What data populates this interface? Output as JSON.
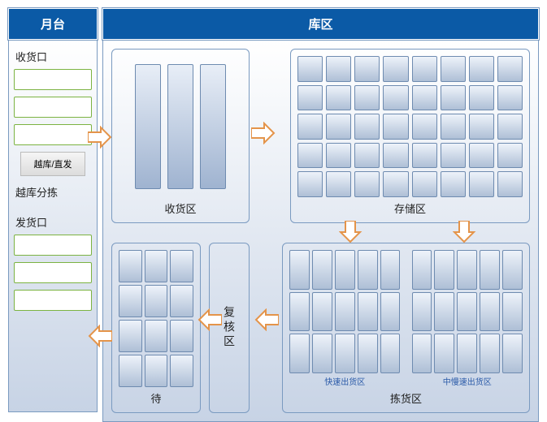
{
  "colors": {
    "header_bg": "#0b5aa6",
    "panel_gradient_top": "#ffffff",
    "panel_gradient_bottom": "#c7d3e5",
    "zone_border": "#7a9ac0",
    "cell_top": "#eef3fa",
    "cell_bottom": "#aebfd6",
    "cell_border": "#6e8bb0",
    "green_border": "#7cb342",
    "arrow_fill": "#ffffff",
    "arrow_stroke": "#e4944a"
  },
  "platform": {
    "header": "月台",
    "receiving_label": "收货口",
    "receiving_slots": 3,
    "cross_dock_button": "越库/直发",
    "cross_sort_label": "越库分拣",
    "shipping_label": "发货口",
    "shipping_slots": 3
  },
  "warehouse": {
    "header": "库区",
    "receiving_zone": {
      "label": "收货区",
      "slabs": 3
    },
    "storage_zone": {
      "label": "存储区",
      "rows": 5,
      "cols": 8
    },
    "waiting_zone": {
      "label": "待",
      "rows": 4,
      "cols": 3
    },
    "review_zone": {
      "label": "复核区"
    },
    "picking_zone": {
      "label": "拣货区",
      "fast": {
        "label": "快速出货区",
        "rows": 3,
        "cols": 5
      },
      "slow": {
        "label": "中慢速出货区",
        "rows": 3,
        "cols": 5
      }
    }
  }
}
